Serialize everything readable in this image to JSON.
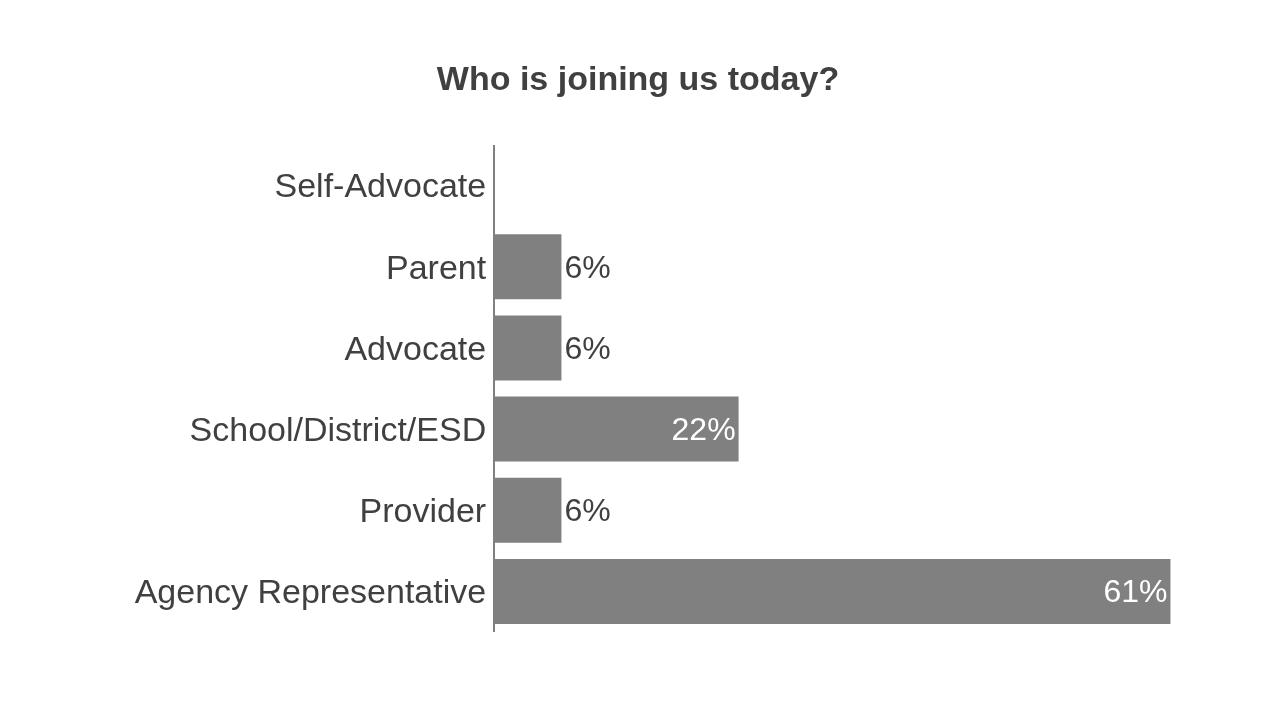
{
  "chart_data": {
    "type": "bar",
    "orientation": "horizontal",
    "title": "Who is joining us today?",
    "categories": [
      "Self-Advocate",
      "Parent",
      "Advocate",
      "School/District/ESD",
      "Provider",
      "Agency Representative"
    ],
    "values": [
      0,
      6,
      6,
      22,
      6,
      61
    ],
    "value_labels": [
      null,
      "6%",
      "6%",
      "22%",
      "6%",
      "61%"
    ],
    "color": "#808080",
    "tick_labels": "y"
  }
}
